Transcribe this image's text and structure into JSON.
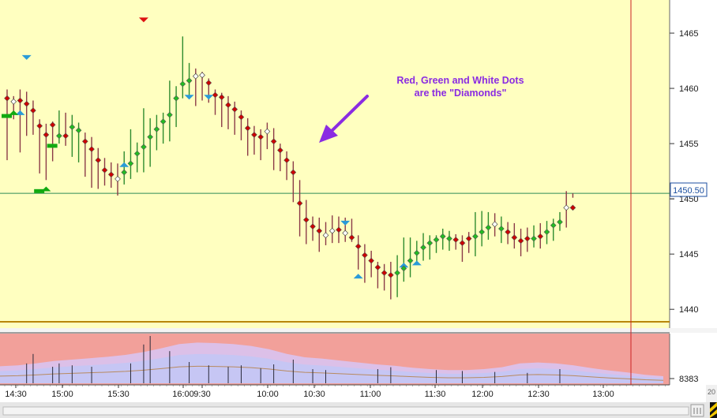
{
  "chart_data": [
    {
      "type": "bar",
      "subtype": "ohlc-price",
      "y_axis_side": "right",
      "ylim": [
        1438.3,
        1468
      ],
      "y_ticks": [
        "1465",
        "1460",
        "1455",
        "1450",
        "1445",
        "1440"
      ],
      "current_price_label": "1450.50",
      "current_price": 1450.5,
      "annotation": [
        "Red, Green and White Dots",
        "are the \"Diamonds\""
      ],
      "colors": {
        "background": "#ffffc0",
        "bar_down": "#8b3a48",
        "bar_up": "#2e8b2e",
        "diamond_red": "#cc0000",
        "diamond_green": "#22bb22",
        "diamond_white": "#ffffff",
        "marker_blue": "#2a9bd8",
        "marker_green": "#11aa11",
        "marker_red": "#dd1111",
        "price_line": "#2e8b57",
        "arrow": "#8a2be2"
      },
      "bars": [
        {
          "high": 1459.9,
          "low": 1453.5,
          "dot": 1459.1,
          "diamond": "red"
        },
        {
          "high": 1459.3,
          "low": 1457.2,
          "dot": 1458.8,
          "diamond": "white"
        },
        {
          "high": 1459.9,
          "low": 1454.2,
          "dot": 1458.9,
          "diamond": "red"
        },
        {
          "high": 1459.7,
          "low": 1455.7,
          "dot": 1458.6,
          "diamond": "red"
        },
        {
          "high": 1458.9,
          "low": 1455.8,
          "dot": 1458.0,
          "diamond": "red"
        },
        {
          "high": 1457.2,
          "low": 1452.3,
          "dot": 1456.6,
          "diamond": "red"
        },
        {
          "high": 1456.8,
          "low": 1451.7,
          "dot": 1455.8,
          "diamond": "red"
        },
        {
          "high": 1457.0,
          "low": 1453.4,
          "dot": 1456.7,
          "diamond": "red"
        },
        {
          "high": 1458.0,
          "low": 1455.0,
          "dot": 1455.7,
          "diamond": "green"
        },
        {
          "high": 1457.8,
          "low": 1454.8,
          "dot": 1455.7,
          "diamond": "red"
        },
        {
          "high": 1457.6,
          "low": 1453.8,
          "dot": 1456.5,
          "diamond": "green"
        },
        {
          "high": 1456.9,
          "low": 1453.3,
          "dot": 1456.2,
          "diamond": "green"
        },
        {
          "high": 1456.0,
          "low": 1452.0,
          "dot": 1455.2,
          "diamond": "red"
        },
        {
          "high": 1455.6,
          "low": 1451.0,
          "dot": 1454.5,
          "diamond": "red"
        },
        {
          "high": 1454.6,
          "low": 1450.9,
          "dot": 1453.5,
          "diamond": "red"
        },
        {
          "high": 1453.7,
          "low": 1451.2,
          "dot": 1452.6,
          "diamond": "red"
        },
        {
          "high": 1453.3,
          "low": 1451.0,
          "dot": 1452.2,
          "diamond": "red"
        },
        {
          "high": 1453.2,
          "low": 1450.3,
          "dot": 1451.8,
          "diamond": "white"
        },
        {
          "high": 1454.3,
          "low": 1451.3,
          "dot": 1452.4,
          "diamond": "green"
        },
        {
          "high": 1456.3,
          "low": 1451.8,
          "dot": 1453.2,
          "diamond": "green"
        },
        {
          "high": 1455.1,
          "low": 1452.4,
          "dot": 1454.1,
          "diamond": "green"
        },
        {
          "high": 1458.2,
          "low": 1452.4,
          "dot": 1454.7,
          "diamond": "green"
        },
        {
          "high": 1457.3,
          "low": 1452.9,
          "dot": 1455.6,
          "diamond": "green"
        },
        {
          "high": 1457.6,
          "low": 1454.4,
          "dot": 1456.3,
          "diamond": "green"
        },
        {
          "high": 1457.8,
          "low": 1455.0,
          "dot": 1457.0,
          "diamond": "green"
        },
        {
          "high": 1460.7,
          "low": 1455.2,
          "dot": 1457.6,
          "diamond": "green"
        },
        {
          "high": 1460.2,
          "low": 1456.5,
          "dot": 1459.1,
          "diamond": "green"
        },
        {
          "high": 1464.7,
          "low": 1459.1,
          "dot": 1460.4,
          "diamond": "green"
        },
        {
          "high": 1462.3,
          "low": 1459.4,
          "dot": 1460.7,
          "diamond": "green"
        },
        {
          "high": 1461.8,
          "low": 1458.4,
          "dot": 1461.1,
          "diamond": "white"
        },
        {
          "high": 1461.5,
          "low": 1458.9,
          "dot": 1461.2,
          "diamond": "white"
        },
        {
          "high": 1460.9,
          "low": 1458.7,
          "dot": 1460.5,
          "diamond": "red"
        },
        {
          "high": 1459.9,
          "low": 1457.6,
          "dot": 1459.4,
          "diamond": "red"
        },
        {
          "high": 1459.6,
          "low": 1456.5,
          "dot": 1459.2,
          "diamond": "red"
        },
        {
          "high": 1459.3,
          "low": 1456.3,
          "dot": 1458.5,
          "diamond": "red"
        },
        {
          "high": 1458.8,
          "low": 1455.8,
          "dot": 1458.1,
          "diamond": "red"
        },
        {
          "high": 1458.0,
          "low": 1455.3,
          "dot": 1457.4,
          "diamond": "red"
        },
        {
          "high": 1457.3,
          "low": 1453.9,
          "dot": 1456.4,
          "diamond": "red"
        },
        {
          "high": 1456.6,
          "low": 1454.0,
          "dot": 1455.8,
          "diamond": "red"
        },
        {
          "high": 1456.3,
          "low": 1453.5,
          "dot": 1455.6,
          "diamond": "red"
        },
        {
          "high": 1456.9,
          "low": 1454.5,
          "dot": 1456.1,
          "diamond": "white"
        },
        {
          "high": 1456.4,
          "low": 1452.6,
          "dot": 1455.2,
          "diamond": "red"
        },
        {
          "high": 1455.0,
          "low": 1452.5,
          "dot": 1454.4,
          "diamond": "red"
        },
        {
          "high": 1454.3,
          "low": 1451.7,
          "dot": 1453.5,
          "diamond": "red"
        },
        {
          "high": 1453.4,
          "low": 1449.7,
          "dot": 1452.4,
          "diamond": "red"
        },
        {
          "high": 1451.7,
          "low": 1446.6,
          "dot": 1449.6,
          "diamond": "red"
        },
        {
          "high": 1449.9,
          "low": 1445.9,
          "dot": 1448.1,
          "diamond": "red"
        },
        {
          "high": 1448.4,
          "low": 1446.2,
          "dot": 1447.5,
          "diamond": "red"
        },
        {
          "high": 1448.3,
          "low": 1445.2,
          "dot": 1447.1,
          "diamond": "red"
        },
        {
          "high": 1447.9,
          "low": 1445.8,
          "dot": 1446.7,
          "diamond": "white"
        },
        {
          "high": 1448.5,
          "low": 1446.0,
          "dot": 1447.1,
          "diamond": "white"
        },
        {
          "high": 1448.4,
          "low": 1446.0,
          "dot": 1447.2,
          "diamond": "red"
        },
        {
          "high": 1448.3,
          "low": 1446.1,
          "dot": 1446.9,
          "diamond": "white"
        },
        {
          "high": 1448.2,
          "low": 1446.1,
          "dot": 1446.5,
          "diamond": "red"
        },
        {
          "high": 1446.7,
          "low": 1443.6,
          "dot": 1445.7,
          "diamond": "red"
        },
        {
          "high": 1445.9,
          "low": 1442.4,
          "dot": 1444.9,
          "diamond": "red"
        },
        {
          "high": 1445.3,
          "low": 1442.9,
          "dot": 1444.4,
          "diamond": "red"
        },
        {
          "high": 1444.3,
          "low": 1441.9,
          "dot": 1443.8,
          "diamond": "red"
        },
        {
          "high": 1444.1,
          "low": 1441.7,
          "dot": 1443.3,
          "diamond": "red"
        },
        {
          "high": 1444.3,
          "low": 1440.9,
          "dot": 1443.1,
          "diamond": "red"
        },
        {
          "high": 1444.9,
          "low": 1441.1,
          "dot": 1443.3,
          "diamond": "green"
        },
        {
          "high": 1446.5,
          "low": 1442.5,
          "dot": 1443.7,
          "diamond": "green"
        },
        {
          "high": 1446.5,
          "low": 1442.9,
          "dot": 1444.4,
          "diamond": "green"
        },
        {
          "high": 1446.2,
          "low": 1444.1,
          "dot": 1445.1,
          "diamond": "green"
        },
        {
          "high": 1446.9,
          "low": 1444.4,
          "dot": 1445.6,
          "diamond": "green"
        },
        {
          "high": 1446.7,
          "low": 1444.5,
          "dot": 1446.0,
          "diamond": "green"
        },
        {
          "high": 1446.7,
          "low": 1445.1,
          "dot": 1446.3,
          "diamond": "green"
        },
        {
          "high": 1447.3,
          "low": 1445.4,
          "dot": 1446.6,
          "diamond": "green"
        },
        {
          "high": 1447.1,
          "low": 1445.3,
          "dot": 1446.4,
          "diamond": "green"
        },
        {
          "high": 1446.8,
          "low": 1445.4,
          "dot": 1446.3,
          "diamond": "red"
        },
        {
          "high": 1446.7,
          "low": 1444.3,
          "dot": 1446.0,
          "diamond": "red"
        },
        {
          "high": 1447.0,
          "low": 1445.1,
          "dot": 1446.4,
          "diamond": "red"
        },
        {
          "high": 1448.8,
          "low": 1444.8,
          "dot": 1446.6,
          "diamond": "green"
        },
        {
          "high": 1448.9,
          "low": 1445.7,
          "dot": 1447.0,
          "diamond": "green"
        },
        {
          "high": 1448.8,
          "low": 1446.3,
          "dot": 1447.4,
          "diamond": "green"
        },
        {
          "high": 1448.7,
          "low": 1446.6,
          "dot": 1447.7,
          "diamond": "white"
        },
        {
          "high": 1448.4,
          "low": 1446.0,
          "dot": 1447.3,
          "diamond": "green"
        },
        {
          "high": 1447.9,
          "low": 1445.9,
          "dot": 1447.0,
          "diamond": "red"
        },
        {
          "high": 1447.8,
          "low": 1445.5,
          "dot": 1446.5,
          "diamond": "red"
        },
        {
          "high": 1447.3,
          "low": 1444.8,
          "dot": 1446.2,
          "diamond": "red"
        },
        {
          "high": 1447.4,
          "low": 1445.2,
          "dot": 1446.4,
          "diamond": "red"
        },
        {
          "high": 1447.6,
          "low": 1445.6,
          "dot": 1446.4,
          "diamond": "green"
        },
        {
          "high": 1447.8,
          "low": 1445.5,
          "dot": 1446.6,
          "diamond": "red"
        },
        {
          "high": 1448.0,
          "low": 1445.9,
          "dot": 1447.0,
          "diamond": "green"
        },
        {
          "high": 1448.2,
          "low": 1446.2,
          "dot": 1447.6,
          "diamond": "green"
        },
        {
          "high": 1448.8,
          "low": 1447.1,
          "dot": 1447.9,
          "diamond": "green"
        },
        {
          "high": 1450.7,
          "low": 1447.4,
          "dot": 1449.2,
          "diamond": "white"
        },
        {
          "high": 1450.5,
          "low": 1450.1,
          "dot": 1449.2,
          "diamond": "red"
        }
      ],
      "markers": [
        {
          "bar": 0,
          "price": 1457.5,
          "shape": "bar-green"
        },
        {
          "bar": 2,
          "price": 1457.8,
          "shape": "triangle-blue"
        },
        {
          "bar": 1,
          "price": 1457.8,
          "shape": "triangle-green"
        },
        {
          "bar": 3,
          "price": 1462.8,
          "shape": "triangle-blue-down"
        },
        {
          "bar": 7,
          "price": 1454.8,
          "shape": "bar-green"
        },
        {
          "bar": 5,
          "price": 1450.7,
          "shape": "bar-green"
        },
        {
          "bar": 6,
          "price": 1450.9,
          "shape": "triangle-green"
        },
        {
          "bar": 18,
          "price": 1453.1,
          "shape": "triangle-blue"
        },
        {
          "bar": 21,
          "price": 1466.2,
          "shape": "triangle-red-down"
        },
        {
          "bar": 28,
          "price": 1459.2,
          "shape": "triangle-blue-down"
        },
        {
          "bar": 31,
          "price": 1459.2,
          "shape": "triangle-blue-down"
        },
        {
          "bar": 52,
          "price": 1447.8,
          "shape": "triangle-blue-down"
        },
        {
          "bar": 54,
          "price": 1443.0,
          "shape": "triangle-blue"
        },
        {
          "bar": 61,
          "price": 1444.0,
          "shape": "triangle-blue"
        },
        {
          "bar": 63,
          "price": 1444.2,
          "shape": "triangle-blue"
        }
      ]
    },
    {
      "type": "area",
      "subtype": "volume",
      "y_tick": "8383",
      "x_ticks": [
        "14:30",
        "15:00",
        "15:30",
        "16:00",
        "9:30",
        "10:00",
        "10:30",
        "11:00",
        "11:30",
        "12:00",
        "12:30",
        "13:00"
      ],
      "colors": {
        "background": "#f2a09a",
        "band_outer": "#dcc0e8",
        "band_inner": "#c6c6f4",
        "spike": "#2a2a3a",
        "avg_line": "#b88a60"
      },
      "band": [
        0.36,
        0.38,
        0.42,
        0.47,
        0.5,
        0.53,
        0.56,
        0.6,
        0.66,
        0.74,
        0.83,
        0.86,
        0.85,
        0.83,
        0.79,
        0.72,
        0.62,
        0.55,
        0.52,
        0.48,
        0.44,
        0.4,
        0.37,
        0.33,
        0.3,
        0.28,
        0.28,
        0.3,
        0.34,
        0.42,
        0.44,
        0.42,
        0.38,
        0.32,
        0.27,
        0.23,
        0.18,
        0.15
      ],
      "spikes": [
        {
          "bar": 3,
          "value": 0.42
        },
        {
          "bar": 4,
          "value": 0.62
        },
        {
          "bar": 7,
          "value": 0.35
        },
        {
          "bar": 8,
          "value": 0.42
        },
        {
          "bar": 10,
          "value": 0.38
        },
        {
          "bar": 13,
          "value": 0.35
        },
        {
          "bar": 19,
          "value": 0.42
        },
        {
          "bar": 21,
          "value": 0.82
        },
        {
          "bar": 22,
          "value": 1.0
        },
        {
          "bar": 25,
          "value": 0.68
        },
        {
          "bar": 28,
          "value": 0.45
        },
        {
          "bar": 31,
          "value": 0.38
        },
        {
          "bar": 34,
          "value": 0.35
        },
        {
          "bar": 36,
          "value": 0.38
        },
        {
          "bar": 39,
          "value": 0.32
        },
        {
          "bar": 41,
          "value": 0.4
        },
        {
          "bar": 44,
          "value": 0.5
        },
        {
          "bar": 47,
          "value": 0.3
        },
        {
          "bar": 49,
          "value": 0.28
        },
        {
          "bar": 57,
          "value": 0.3
        },
        {
          "bar": 59,
          "value": 0.34
        },
        {
          "bar": 66,
          "value": 0.28
        },
        {
          "bar": 70,
          "value": 0.26
        },
        {
          "bar": 75,
          "value": 0.24
        },
        {
          "bar": 80,
          "value": 0.22
        },
        {
          "bar": 85,
          "value": 0.3
        }
      ]
    }
  ],
  "corner_glyph": "20"
}
